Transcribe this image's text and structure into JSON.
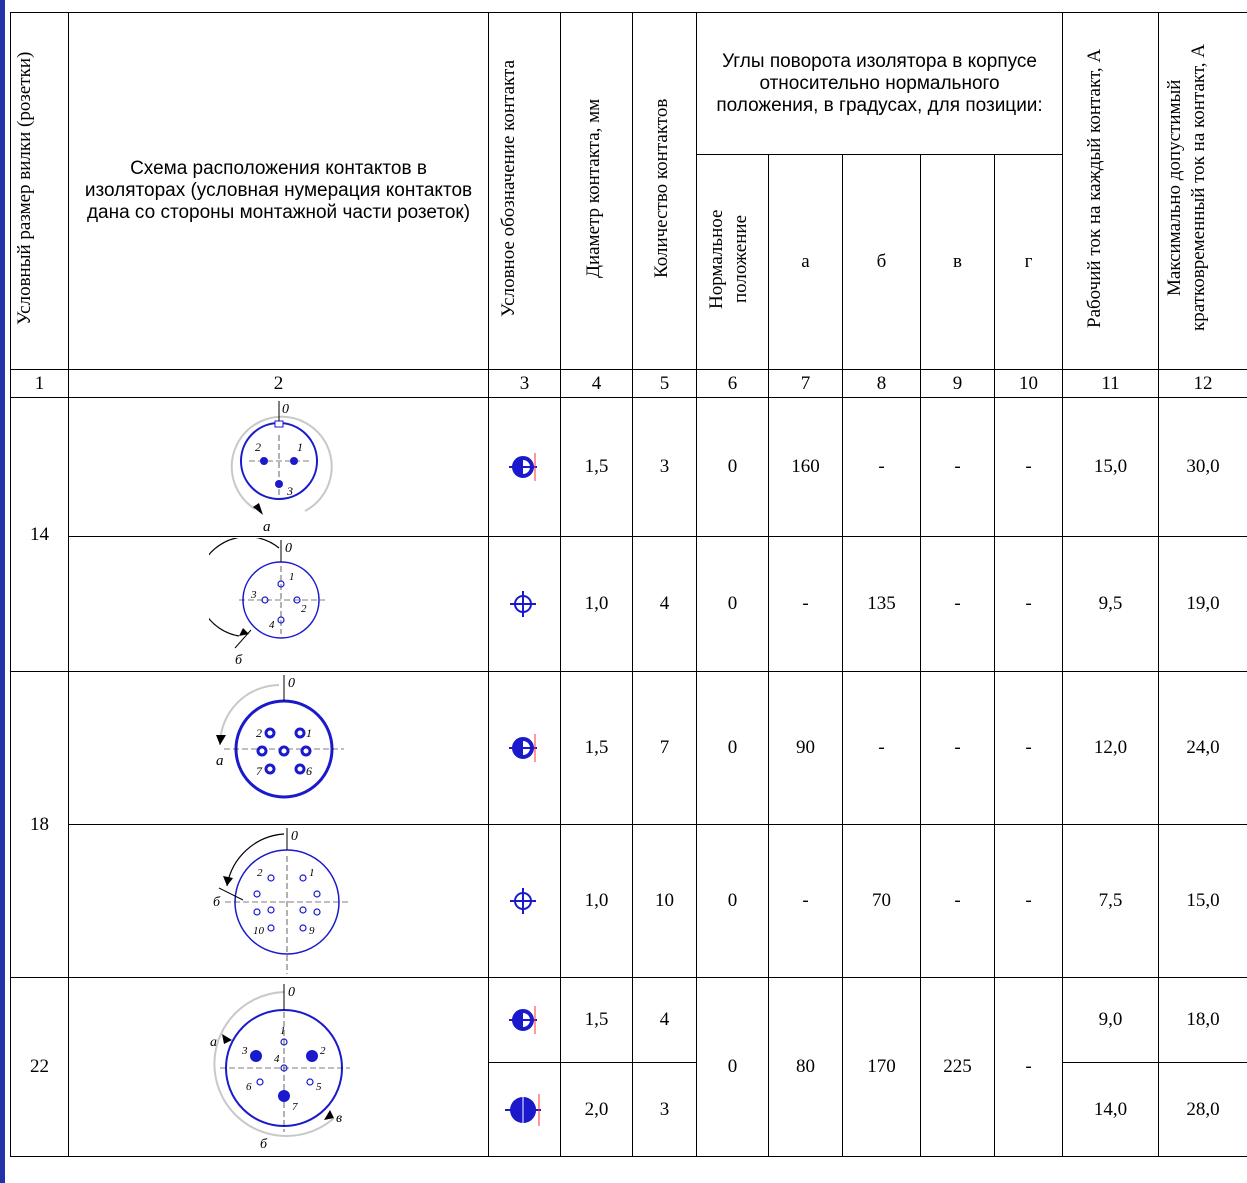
{
  "headers": {
    "c1": "Условный размер вилки (розетки)",
    "c2": "Схема расположения контактов в изоляторах (условная нумерация контактов дана со стороны монтажной части розеток)",
    "c3": "Условное обозначение контакта",
    "c4": "Диаметр контакта, мм",
    "c5": "Количество контактов",
    "group": "Углы поворота изолятора в корпусе относительно нормального положения, в градусах, для позиции:",
    "c6": "Нормальное положение",
    "c7": "а",
    "c8": "б",
    "c9": "в",
    "c10": "г",
    "c11": "Рабочий ток на каждый контакт, А",
    "c12": "Максимально допустимый кратковременный ток на контакт, А"
  },
  "col_numbers": [
    "1",
    "2",
    "3",
    "4",
    "5",
    "6",
    "7",
    "8",
    "9",
    "10",
    "11",
    "12"
  ],
  "sizes": [
    "14",
    "18",
    "22"
  ],
  "rows": [
    {
      "diam": "1,5",
      "count": "3",
      "normal": "0",
      "a": "160",
      "b": "-",
      "v": "-",
      "g": "-",
      "work": "15,0",
      "max": "30,0"
    },
    {
      "diam": "1,0",
      "count": "4",
      "normal": "0",
      "a": "-",
      "b": "135",
      "v": "-",
      "g": "-",
      "work": "9,5",
      "max": "19,0"
    },
    {
      "diam": "1,5",
      "count": "7",
      "normal": "0",
      "a": "90",
      "b": "-",
      "v": "-",
      "g": "-",
      "work": "12,0",
      "max": "24,0"
    },
    {
      "diam": "1,0",
      "count": "10",
      "normal": "0",
      "a": "-",
      "b": "70",
      "v": "-",
      "g": "-",
      "work": "7,5",
      "max": "15,0"
    },
    {
      "diam": "1,5",
      "count": "4",
      "work": "9,0",
      "max": "18,0"
    },
    {
      "diam": "2,0",
      "count": "3",
      "work": "14,0",
      "max": "28,0"
    }
  ],
  "row22_shared": {
    "normal": "0",
    "a": "80",
    "b": "170",
    "v": "225",
    "g": "-"
  },
  "diagram_labels": {
    "d1": {
      "zero": "0",
      "pos": "a",
      "contacts": [
        "1",
        "2",
        "3"
      ]
    },
    "d2": {
      "zero": "0",
      "pos": "б",
      "contacts": [
        "1",
        "2",
        "3",
        "4"
      ]
    },
    "d3": {
      "zero": "0",
      "pos": "a",
      "contacts": [
        "1",
        "2",
        "6",
        "7"
      ]
    },
    "d4": {
      "zero": "0",
      "pos": "б",
      "contacts": [
        "1",
        "2",
        "9",
        "10"
      ]
    },
    "d5": {
      "zero": "0",
      "pos_a": "a",
      "pos_b": "б",
      "pos_v": "в",
      "contacts": [
        "1",
        "2",
        "3",
        "4",
        "5",
        "6",
        "7"
      ]
    }
  },
  "colors": {
    "diagram": "#1a1acc",
    "accent": "#ff3333",
    "frame": "#2233aa"
  }
}
